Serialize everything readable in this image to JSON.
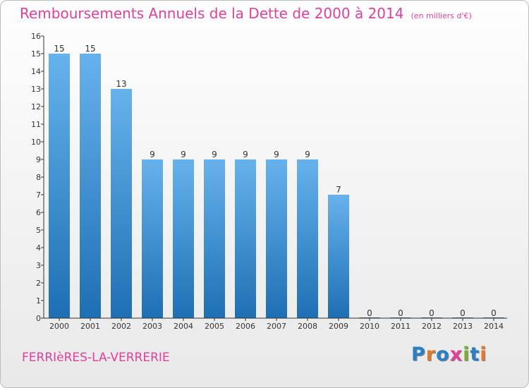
{
  "title": "Remboursements Annuels de la Dette de 2000 à 2014",
  "unit": "(en milliers d'€)",
  "commune": "FERRIèRES-LA-VERRERIE",
  "logo": {
    "text": "Proxiti",
    "letter_colors": [
      "#2b7fc4",
      "#e07a2a",
      "#2b7fc4",
      "#e0409a",
      "#7ab030",
      "#2b7fc4",
      "#e07a2a"
    ]
  },
  "colors": {
    "bar_top": "#66b2ec",
    "bar_bottom": "#1e6fb3",
    "title": "#e0409a",
    "axis": "#333333"
  },
  "chart_data": {
    "type": "bar",
    "categories": [
      "2000",
      "2001",
      "2002",
      "2003",
      "2004",
      "2005",
      "2006",
      "2007",
      "2008",
      "2009",
      "2010",
      "2011",
      "2012",
      "2013",
      "2014"
    ],
    "values": [
      15,
      15,
      13,
      9,
      9,
      9,
      9,
      9,
      9,
      7,
      0,
      0,
      0,
      0,
      0
    ],
    "data_labels": [
      "15",
      "15",
      "13",
      "9",
      "9",
      "9",
      "9",
      "9",
      "9",
      "7",
      "0",
      "0",
      "0",
      "0",
      "0"
    ],
    "y_ticks": [
      0,
      1,
      2,
      3,
      4,
      5,
      6,
      7,
      8,
      9,
      10,
      11,
      12,
      13,
      14,
      15,
      16
    ],
    "ylim": [
      0,
      16
    ],
    "grid": false,
    "legend": "none"
  }
}
